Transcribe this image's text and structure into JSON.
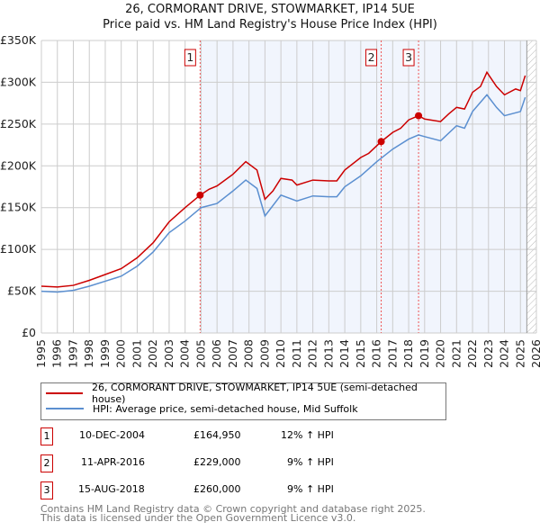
{
  "chart_data": {
    "type": "line",
    "title": "26, CORMORANT DRIVE, STOWMARKET, IP14 5UE",
    "subtitle": "Price paid vs. HM Land Registry's House Price Index (HPI)",
    "xlim": [
      1995,
      2026
    ],
    "ylim": [
      0,
      350000
    ],
    "yticks": [
      {
        "v": 0,
        "label": "£0"
      },
      {
        "v": 50000,
        "label": "£50K"
      },
      {
        "v": 100000,
        "label": "£100K"
      },
      {
        "v": 150000,
        "label": "£150K"
      },
      {
        "v": 200000,
        "label": "£200K"
      },
      {
        "v": 250000,
        "label": "£250K"
      },
      {
        "v": 300000,
        "label": "£300K"
      },
      {
        "v": 350000,
        "label": "£350K"
      }
    ],
    "xticks": [
      "1995",
      "1996",
      "1997",
      "1998",
      "1999",
      "2000",
      "2001",
      "2002",
      "2003",
      "2004",
      "2005",
      "2006",
      "2007",
      "2008",
      "2009",
      "2010",
      "2011",
      "2012",
      "2013",
      "2014",
      "2015",
      "2016",
      "2017",
      "2018",
      "2019",
      "2020",
      "2021",
      "2022",
      "2023",
      "2024",
      "2025",
      "2026"
    ],
    "series": [
      {
        "name": "26, CORMORANT DRIVE, STOWMARKET, IP14 5UE (semi-detached house)",
        "color": "#cc0000",
        "x": [
          1995,
          1996,
          1997,
          1998,
          1999,
          2000,
          2001,
          2002,
          2003,
          2004,
          2004.94,
          2005.5,
          2006,
          2007,
          2007.8,
          2008.5,
          2009,
          2009.5,
          2010,
          2010.7,
          2011,
          2012,
          2013,
          2013.5,
          2014,
          2015,
          2015.5,
          2016.28,
          2017,
          2017.5,
          2018,
          2018.62,
          2019,
          2020,
          2020.5,
          2021,
          2021.5,
          2022,
          2022.5,
          2022.9,
          2023.5,
          2024,
          2024.7,
          2025,
          2025.3
        ],
        "y": [
          56000,
          55000,
          57000,
          63000,
          70000,
          77000,
          90000,
          108000,
          133000,
          150000,
          164950,
          172000,
          176000,
          190000,
          205000,
          195000,
          160000,
          170000,
          185000,
          183000,
          177000,
          183000,
          182000,
          182000,
          195000,
          210000,
          215000,
          229000,
          240000,
          245000,
          255000,
          260000,
          256000,
          253000,
          262000,
          270000,
          268000,
          288000,
          295000,
          312000,
          295000,
          285000,
          292000,
          290000,
          308000
        ]
      },
      {
        "name": "HPI: Average price, semi-detached house, Mid Suffolk",
        "color": "#5b8fd0",
        "x": [
          1995,
          1996,
          1997,
          1998,
          1999,
          2000,
          2001,
          2002,
          2003,
          2004,
          2005,
          2006,
          2007,
          2007.8,
          2008.5,
          2009,
          2010,
          2011,
          2012,
          2013,
          2013.5,
          2014,
          2015,
          2016,
          2017,
          2018,
          2018.62,
          2019,
          2020,
          2021,
          2021.5,
          2022,
          2022.9,
          2023.5,
          2024,
          2025,
          2025.3
        ],
        "y": [
          50000,
          49000,
          51000,
          56000,
          62000,
          68000,
          80000,
          97000,
          120000,
          134000,
          150000,
          155000,
          170000,
          183000,
          173000,
          140000,
          165000,
          158000,
          164000,
          163000,
          163000,
          175000,
          188000,
          205000,
          220000,
          232000,
          237000,
          235000,
          230000,
          248000,
          245000,
          265000,
          285000,
          270000,
          260000,
          265000,
          282000
        ]
      }
    ],
    "sales": [
      {
        "n": "1",
        "x": 2004.94,
        "y": 164950,
        "date": "10-DEC-2004",
        "price": "£164,950",
        "hpi": "12% ↑ HPI"
      },
      {
        "n": "2",
        "x": 2016.28,
        "y": 229000,
        "date": "11-APR-2016",
        "price": "£229,000",
        "hpi": "9% ↑ HPI"
      },
      {
        "n": "3",
        "x": 2018.62,
        "y": 260000,
        "date": "15-AUG-2018",
        "price": "£260,000",
        "hpi": "9% ↑ HPI"
      }
    ],
    "shade_range": [
      2004.94,
      2025.4
    ],
    "hatch_from": 2025.4
  },
  "legend": {
    "red": "26, CORMORANT DRIVE, STOWMARKET, IP14 5UE (semi-detached house)",
    "blue": "HPI: Average price, semi-detached house, Mid Suffolk"
  },
  "footer": {
    "line1": "Contains HM Land Registry data © Crown copyright and database right 2025.",
    "line2": "This data is licensed under the Open Government Licence v3.0."
  }
}
